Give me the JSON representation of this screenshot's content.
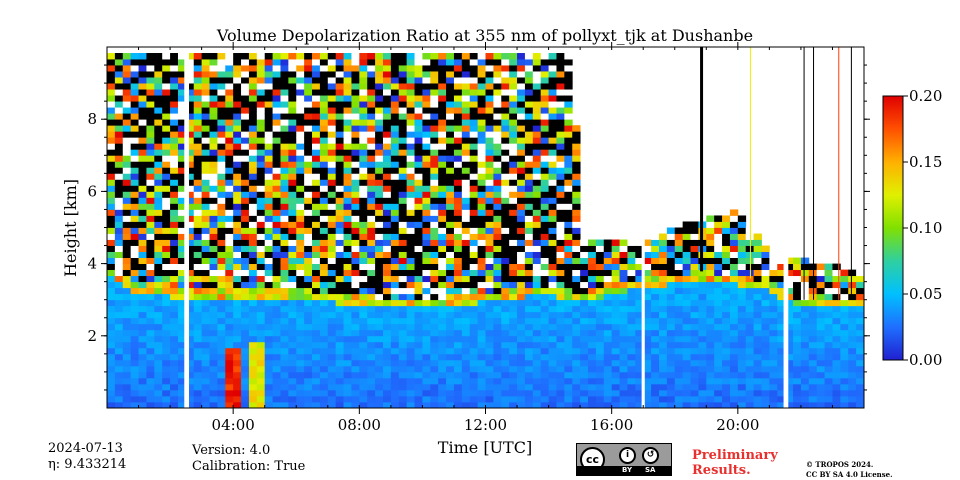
{
  "chart_data": {
    "type": "heatmap",
    "title": "Volume Depolarization Ratio at 355 nm of pollyxt_tjk at Dushanbe",
    "xlabel": "Time [UTC]",
    "ylabel": "Height [km]",
    "xlim_hours": [
      0,
      24
    ],
    "ylim_km": [
      0,
      10
    ],
    "x_ticks": [
      {
        "hour": 4,
        "label": "04:00"
      },
      {
        "hour": 8,
        "label": "08:00"
      },
      {
        "hour": 12,
        "label": "12:00"
      },
      {
        "hour": 16,
        "label": "16:00"
      },
      {
        "hour": 20,
        "label": "20:00"
      }
    ],
    "x_minor_step_hours": 1,
    "y_ticks": [
      {
        "value": 2,
        "label": "2"
      },
      {
        "value": 4,
        "label": "4"
      },
      {
        "value": 6,
        "label": "6"
      },
      {
        "value": 8,
        "label": "8"
      }
    ],
    "y_minor_step_km": 0.5,
    "colorbar": {
      "vmin": 0.0,
      "vmax": 0.2,
      "colormap": [
        "#2020d0",
        "#1f6fff",
        "#00c0ff",
        "#2fd0a0",
        "#80e000",
        "#e0f000",
        "#ffb000",
        "#ff5000",
        "#e00000"
      ],
      "ticks": [
        {
          "value": 0.0,
          "label": "0.00"
        },
        {
          "value": 0.05,
          "label": "0.05"
        },
        {
          "value": 0.1,
          "label": "0.10"
        },
        {
          "value": 0.15,
          "label": "0.15"
        },
        {
          "value": 0.2,
          "label": "0.20"
        }
      ]
    },
    "description_layers": {
      "cloud_top_km": [
        {
          "hour": 0.0,
          "km": 3.9
        },
        {
          "hour": 1.0,
          "km": 3.4
        },
        {
          "hour": 2.5,
          "km": 3.3
        },
        {
          "hour": 4.0,
          "km": 3.3
        },
        {
          "hour": 6.0,
          "km": 3.3
        },
        {
          "hour": 8.0,
          "km": 3.1
        },
        {
          "hour": 10.0,
          "km": 3.0
        },
        {
          "hour": 12.0,
          "km": 3.2
        },
        {
          "hour": 14.0,
          "km": 3.4
        },
        {
          "hour": 15.0,
          "km": 3.2
        },
        {
          "hour": 17.0,
          "km": 3.6
        },
        {
          "hour": 19.0,
          "km": 3.8
        },
        {
          "hour": 21.0,
          "km": 3.5
        },
        {
          "hour": 22.0,
          "km": 3.0
        },
        {
          "hour": 24.0,
          "km": 3.0
        }
      ],
      "noise_top_km": [
        {
          "hour": 0.0,
          "km": 9.9
        },
        {
          "hour": 14.8,
          "km": 9.9
        },
        {
          "hour": 15.0,
          "km": 4.6
        },
        {
          "hour": 17.0,
          "km": 4.6
        },
        {
          "hour": 18.0,
          "km": 5.0
        },
        {
          "hour": 20.0,
          "km": 5.5
        },
        {
          "hour": 21.0,
          "km": 4.3
        },
        {
          "hour": 24.0,
          "km": 3.8
        }
      ],
      "gaps_hours": [
        {
          "start": 2.45,
          "end": 2.6
        },
        {
          "start": 16.95,
          "end": 17.05
        },
        {
          "start": 21.45,
          "end": 21.6
        }
      ],
      "vertical_lines": [
        {
          "hour": 18.85,
          "color": "#000000",
          "width": 3
        },
        {
          "hour": 20.4,
          "color": "#f2ee00",
          "width": 1
        },
        {
          "hour": 23.2,
          "color": "#ff4000",
          "width": 1
        },
        {
          "hour": 22.1,
          "color": "#000000",
          "width": 1
        },
        {
          "hour": 22.4,
          "color": "#000000",
          "width": 1
        },
        {
          "hour": 23.6,
          "color": "#000000",
          "width": 1
        }
      ],
      "high_depol_zones": [
        {
          "hour_start": 3.7,
          "hour_end": 4.2,
          "km_top": 1.6,
          "value": 0.19
        },
        {
          "hour_start": 4.5,
          "hour_end": 4.9,
          "km_top": 1.9,
          "value": 0.13
        },
        {
          "hour_start": 13.9,
          "hour_end": 15.3,
          "km_top": 4.5,
          "km_bottom": 3.3,
          "value": 0.16
        }
      ]
    }
  },
  "footer": {
    "date": "2024-07-13",
    "eta_label": "η: 9.433214",
    "version": "Version: 4.0",
    "calibration": "Calibration: True",
    "license_badge": {
      "cc": "cc",
      "by": "BY",
      "sa": "SA"
    },
    "preliminary_line1": "Preliminary",
    "preliminary_line2": "Results.",
    "copyright_line1": "© TROPOS 2024.",
    "copyright_line2": "CC BY SA 4.0 License."
  }
}
